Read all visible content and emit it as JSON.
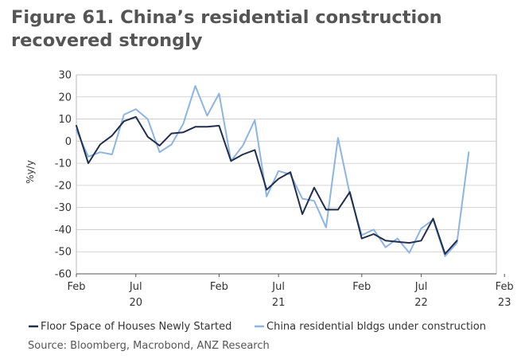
{
  "header": {
    "title": "Figure 61. China’s residential construction recovered strongly"
  },
  "footer": {
    "source": "Source:  Bloomberg, Macrobond, ANZ Research"
  },
  "chart_data": {
    "type": "line",
    "title": "Figure 61. China’s residential construction recovered strongly",
    "xlabel": "",
    "ylabel": "%y/y",
    "x_axis": {
      "type": "date",
      "range": [
        "2020-02",
        "2023-03"
      ],
      "month_ticks": [
        {
          "date": "2020-02",
          "label": "Feb"
        },
        {
          "date": "2020-07",
          "label": "Jul"
        },
        {
          "date": "2021-02",
          "label": "Feb"
        },
        {
          "date": "2021-07",
          "label": "Jul"
        },
        {
          "date": "2022-02",
          "label": "Feb"
        },
        {
          "date": "2022-07",
          "label": "Jul"
        },
        {
          "date": "2023-02",
          "label": "Feb"
        }
      ],
      "year_labels": [
        {
          "date": "2020-07",
          "label": "20"
        },
        {
          "date": "2021-07",
          "label": "21"
        },
        {
          "date": "2022-07",
          "label": "22"
        },
        {
          "date": "2023-02",
          "label": "23"
        }
      ]
    },
    "ylim": [
      -60,
      30
    ],
    "yticks": [
      30,
      20,
      10,
      0,
      -10,
      -20,
      -30,
      -40,
      -50,
      -60
    ],
    "grid": true,
    "legend": "bottom",
    "series": [
      {
        "name": "Floor Space of Houses Newly Started",
        "color": "#1f2f4d",
        "points": [
          [
            "2020-02",
            7
          ],
          [
            "2020-03",
            -10
          ],
          [
            "2020-04",
            -1.5
          ],
          [
            "2020-05",
            2.5
          ],
          [
            "2020-06",
            9
          ],
          [
            "2020-07",
            11
          ],
          [
            "2020-08",
            2
          ],
          [
            "2020-09",
            -2
          ],
          [
            "2020-10",
            3.5
          ],
          [
            "2020-11",
            4
          ],
          [
            "2020-12",
            6.5
          ],
          [
            "2021-01",
            6.5
          ],
          [
            "2021-02",
            7
          ],
          [
            "2021-03",
            -9
          ],
          [
            "2021-04",
            -6
          ],
          [
            "2021-05",
            -4
          ],
          [
            "2021-06",
            -22
          ],
          [
            "2021-07",
            -17
          ],
          [
            "2021-08",
            -14
          ],
          [
            "2021-09",
            -33
          ],
          [
            "2021-10",
            -21
          ],
          [
            "2021-11",
            -31
          ],
          [
            "2021-12",
            -31
          ],
          [
            "2022-01",
            -23
          ],
          [
            "2022-02",
            -44
          ],
          [
            "2022-03",
            -42
          ],
          [
            "2022-04",
            -45
          ],
          [
            "2022-05",
            -45.5
          ],
          [
            "2022-06",
            -46
          ],
          [
            "2022-07",
            -45
          ],
          [
            "2022-08",
            -35
          ],
          [
            "2022-09",
            -51
          ],
          [
            "2022-10",
            -45
          ]
        ]
      },
      {
        "name": "China residential bldgs under construction",
        "color": "#8db4e2",
        "points": [
          [
            "2020-02",
            5
          ],
          [
            "2020-03",
            -7
          ],
          [
            "2020-04",
            -5
          ],
          [
            "2020-05",
            -6
          ],
          [
            "2020-06",
            12
          ],
          [
            "2020-07",
            14.5
          ],
          [
            "2020-08",
            10
          ],
          [
            "2020-09",
            -5
          ],
          [
            "2020-10",
            -1.5
          ],
          [
            "2020-11",
            8
          ],
          [
            "2020-12",
            25
          ],
          [
            "2021-01",
            11.5
          ],
          [
            "2021-02",
            21.5
          ],
          [
            "2021-03",
            -9
          ],
          [
            "2021-04",
            -2
          ],
          [
            "2021-05",
            9.5
          ],
          [
            "2021-06",
            -25
          ],
          [
            "2021-07",
            -13.5
          ],
          [
            "2021-08",
            -15
          ],
          [
            "2021-09",
            -26
          ],
          [
            "2021-10",
            -27
          ],
          [
            "2021-11",
            -39
          ],
          [
            "2021-12",
            1.5
          ],
          [
            "2022-01",
            -24
          ],
          [
            "2022-02",
            -42.5
          ],
          [
            "2022-03",
            -40
          ],
          [
            "2022-04",
            -48
          ],
          [
            "2022-05",
            -44
          ],
          [
            "2022-06",
            -50.5
          ],
          [
            "2022-07",
            -39.5
          ],
          [
            "2022-08",
            -35.5
          ],
          [
            "2022-09",
            -52
          ],
          [
            "2022-10",
            -46
          ],
          [
            "2022-11",
            -5
          ]
        ]
      }
    ]
  }
}
